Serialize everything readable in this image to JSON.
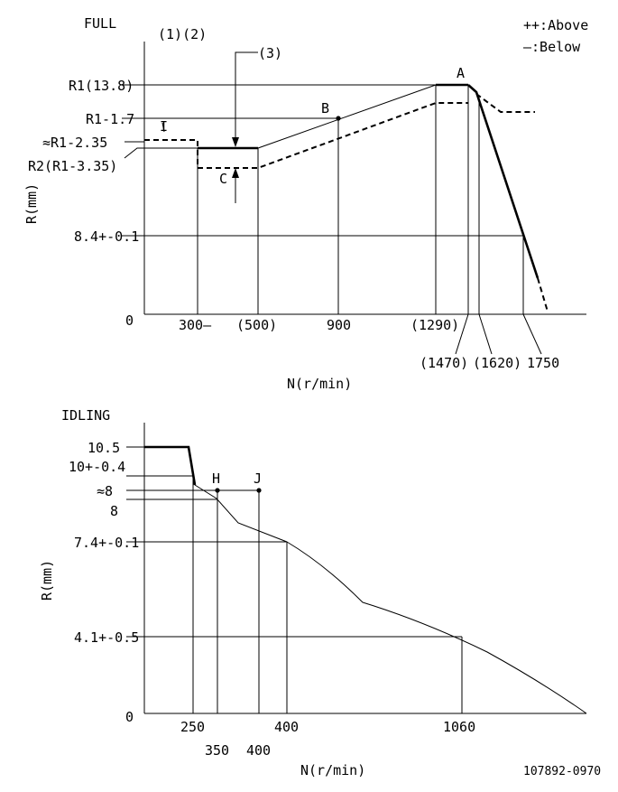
{
  "full": {
    "title": "FULL",
    "notes": "(1)(2)",
    "note3": "(3)",
    "legend": {
      "above": "++:Above",
      "below": "—:Below"
    },
    "y_labels": {
      "r1": "R1(13.8)",
      "r1_17": "R1-1.7",
      "r1_235": "≈R1-2.35",
      "r2": "R2(R1-3.35)",
      "r84": "8.4+-0.1",
      "zero": "0"
    },
    "y_axis": "R(mm)",
    "x_labels": {
      "n300": "300—",
      "n500": "(500)",
      "n900": "900",
      "n1290": "(1290)",
      "n1470": "(1470)",
      "n1620": "(1620)",
      "n1750": "1750"
    },
    "x_axis": "N(r/min)",
    "points": {
      "a": "A",
      "b": "B",
      "c": "C",
      "i": "I"
    }
  },
  "idling": {
    "title": "IDLING",
    "y_labels": {
      "r105": "10.5",
      "r10": "10+-0.4",
      "r8a": "≈8",
      "r8": "8",
      "r74": "7.4+-0.1",
      "r41": "4.1+-0.5",
      "zero": "0"
    },
    "y_axis": "R(mm)",
    "x_labels": {
      "n250": "250",
      "n350": "350",
      "n400a": "400",
      "n400b": "400",
      "n1060": "1060"
    },
    "x_axis": "N(r/min)",
    "points": {
      "h": "H",
      "j": "J"
    }
  },
  "doc_code": "107892-0970"
}
